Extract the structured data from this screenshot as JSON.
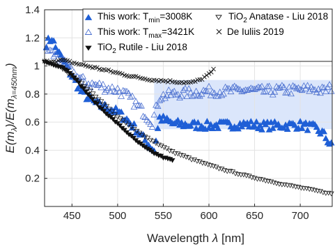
{
  "chart_data": {
    "type": "scatter",
    "xlabel_parts": [
      "Wavelength ",
      "λ",
      " [nm]"
    ],
    "ylabel_parts": [
      "E(m",
      "λ",
      ")/E(m",
      "λ=450nm",
      ")"
    ],
    "xlim": [
      420,
      735
    ],
    "ylim": [
      0,
      1.4
    ],
    "xticks": [
      450,
      500,
      550,
      600,
      650,
      700
    ],
    "yticks": [
      0.2,
      0.4,
      0.6,
      0.8,
      1,
      1.2,
      1.4
    ],
    "grid": true,
    "legend_position": "top",
    "legend": [
      {
        "key": "tmin",
        "text": "This work: T",
        "sub": "min",
        "text2": "=3008K"
      },
      {
        "key": "anatase",
        "text": "TiO",
        "sub": "2",
        "text2": " Anatase - Liu 2018"
      },
      {
        "key": "tmax",
        "text": "This work: T",
        "sub": "max",
        "text2": "=3421K"
      },
      {
        "key": "deiuliis",
        "text": "De Iuliis 2019",
        "sub": "",
        "text2": ""
      },
      {
        "key": "rutile",
        "text": "TiO",
        "sub": "2",
        "text2": " Rutile - Liu 2018"
      }
    ],
    "colors": {
      "tmin": "#1f5fd6",
      "tmax": "#4a6fd0",
      "band": "#dbe6fb",
      "black": "#111111"
    },
    "band": {
      "x_start": 540,
      "x_end": 735
    },
    "series": [
      {
        "name": "This work: Tmin=3008K",
        "key": "tmin",
        "marker": "triangle-filled",
        "anchors": [
          [
            422,
            1.16
          ],
          [
            428,
            1.2
          ],
          [
            432,
            1.13
          ],
          [
            440,
            1.04
          ],
          [
            450,
            0.93
          ],
          [
            460,
            0.82
          ],
          [
            470,
            0.76
          ],
          [
            480,
            0.72
          ],
          [
            490,
            0.7
          ],
          [
            500,
            0.67
          ],
          [
            510,
            0.62
          ],
          [
            520,
            0.55
          ],
          [
            530,
            0.47
          ],
          [
            540,
            0.4
          ],
          [
            546,
            0.63
          ],
          [
            560,
            0.59
          ],
          [
            580,
            0.58
          ],
          [
            600,
            0.575
          ],
          [
            620,
            0.58
          ],
          [
            640,
            0.585
          ],
          [
            660,
            0.575
          ],
          [
            680,
            0.575
          ],
          [
            700,
            0.58
          ],
          [
            715,
            0.56
          ],
          [
            725,
            0.52
          ],
          [
            735,
            0.42
          ]
        ],
        "step": 2,
        "jitter": 0.03
      },
      {
        "name": "This work: Tmax=3421K",
        "key": "tmax",
        "marker": "triangle-open",
        "anchors": [
          [
            422,
            1.13
          ],
          [
            430,
            1.08
          ],
          [
            440,
            1.02
          ],
          [
            450,
            0.96
          ],
          [
            460,
            0.9
          ],
          [
            470,
            0.87
          ],
          [
            480,
            0.86
          ],
          [
            490,
            0.84
          ],
          [
            500,
            0.83
          ],
          [
            510,
            0.79
          ],
          [
            520,
            0.73
          ],
          [
            530,
            0.66
          ],
          [
            538,
            0.6
          ],
          [
            546,
            0.78
          ],
          [
            560,
            0.8
          ],
          [
            580,
            0.81
          ],
          [
            600,
            0.82
          ],
          [
            620,
            0.82
          ],
          [
            640,
            0.83
          ],
          [
            660,
            0.82
          ],
          [
            680,
            0.83
          ],
          [
            700,
            0.83
          ],
          [
            715,
            0.84
          ],
          [
            725,
            0.82
          ],
          [
            735,
            0.85
          ]
        ],
        "step": 2,
        "jitter": 0.035
      },
      {
        "name": "TiO2 Anatase - Liu 2018",
        "key": "anatase",
        "marker": "triangle-down-open",
        "anchors": [
          [
            440,
            0.98
          ],
          [
            460,
            0.88
          ],
          [
            480,
            0.76
          ],
          [
            500,
            0.64
          ],
          [
            520,
            0.54
          ],
          [
            540,
            0.46
          ],
          [
            560,
            0.39
          ],
          [
            580,
            0.34
          ],
          [
            600,
            0.295
          ],
          [
            620,
            0.255
          ],
          [
            640,
            0.22
          ],
          [
            660,
            0.19
          ],
          [
            680,
            0.16
          ],
          [
            700,
            0.135
          ],
          [
            720,
            0.11
          ],
          [
            735,
            0.09
          ]
        ],
        "step": 3,
        "jitter": 0.004
      },
      {
        "name": "TiO2 Rutile - Liu 2018",
        "key": "rutile",
        "marker": "triangle-down-filled",
        "anchors": [
          [
            420,
            1.03
          ],
          [
            430,
            1.01
          ],
          [
            440,
            0.99
          ],
          [
            450,
            0.94
          ],
          [
            460,
            0.86
          ],
          [
            470,
            0.78
          ],
          [
            480,
            0.71
          ],
          [
            490,
            0.65
          ],
          [
            500,
            0.59
          ],
          [
            510,
            0.53
          ],
          [
            520,
            0.47
          ],
          [
            530,
            0.42
          ],
          [
            540,
            0.38
          ],
          [
            550,
            0.35
          ],
          [
            560,
            0.33
          ]
        ],
        "step": 2.5,
        "jitter": 0.004
      },
      {
        "name": "De Iuliis 2019",
        "key": "deiuliis",
        "marker": "x",
        "anchors": [
          [
            420,
            1.03
          ],
          [
            440,
            1.04
          ],
          [
            460,
            1.01
          ],
          [
            480,
            0.98
          ],
          [
            500,
            0.95
          ],
          [
            520,
            0.92
          ],
          [
            540,
            0.9
          ],
          [
            560,
            0.89
          ],
          [
            580,
            0.88
          ],
          [
            590,
            0.9
          ],
          [
            600,
            0.94
          ],
          [
            605,
            0.97
          ]
        ],
        "step": 2.5,
        "jitter": 0.008
      }
    ]
  }
}
